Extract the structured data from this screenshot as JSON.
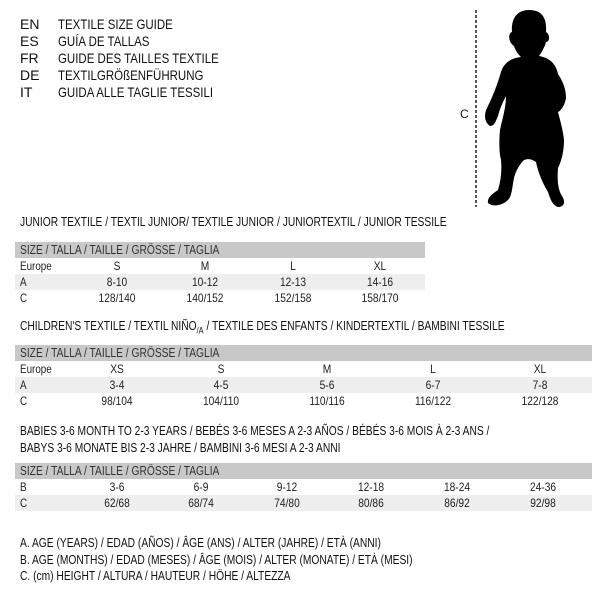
{
  "header": {
    "languages": [
      {
        "code": "EN",
        "title": "TEXTILE SIZE GUIDE"
      },
      {
        "code": "ES",
        "title": "GUÍA DE TALLAS"
      },
      {
        "code": "FR",
        "title": "GUIDE DES TAILLES TEXTILE"
      },
      {
        "code": "DE",
        "title": "TEXTILGRÖßENFÜHRUNG"
      },
      {
        "code": "IT",
        "title": "GUIDA ALLE TAGLIE TESSILI"
      }
    ]
  },
  "figure": {
    "measure_label": "C",
    "icon": "baby-silhouette-icon"
  },
  "junior": {
    "title": "JUNIOR TEXTILE / TEXTIL JUNIOR/ TEXTILE JUNIOR / JUNIORTEXTIL / JUNIOR TESSILE",
    "header": "SIZE / TALLA / TAILLE / GRÖSSE / TAGLIA",
    "rows": [
      {
        "label": "Europe",
        "values": [
          "S",
          "M",
          "L",
          "XL"
        ]
      },
      {
        "label": "A",
        "values": [
          "8-10",
          "10-12",
          "12-13",
          "14-16"
        ]
      },
      {
        "label": "C",
        "values": [
          "128/140",
          "140/152",
          "152/158",
          "158/170"
        ]
      }
    ]
  },
  "children": {
    "title_main": "CHILDREN'S TEXTILE / TEXTIL NIÑO",
    "title_sub": "/A",
    "title_rest": " / TEXTILE DES ENFANTS / KINDERTEXTIL / BAMBINI TESSILE",
    "header": "SIZE / TALLA / TAILLE / GRÖSSE / TAGLIA",
    "rows": [
      {
        "label": "Europe",
        "values": [
          "XS",
          "S",
          "M",
          "L",
          "XL"
        ]
      },
      {
        "label": "A",
        "values": [
          "3-4",
          "4-5",
          "5-6",
          "6-7",
          "7-8"
        ]
      },
      {
        "label": "C",
        "values": [
          "98/104",
          "104/110",
          "110/116",
          "116/122",
          "122/128"
        ]
      }
    ]
  },
  "babies": {
    "title_line1": "BABIES 3-6 MONTH TO 2-3 YEARS / BEBÉS 3-6 MESES A 2-3 AÑOS / BÉBÉS 3-6 MOIS À 2-3 ANS /",
    "title_line2": "BABYS 3-6 MONATE BIS 2-3 JAHRE / BAMBINI 3-6 MESI A 2-3 ANNI",
    "header": "SIZE / TALLA / TAILLE / GRÖSSE / TAGLIA",
    "rows": [
      {
        "label": "B",
        "values": [
          "3-6",
          "6-9",
          "9-12",
          "12-18",
          "18-24",
          "24-36"
        ]
      },
      {
        "label": "C",
        "values": [
          "62/68",
          "68/74",
          "74/80",
          "80/86",
          "86/92",
          "92/98"
        ]
      }
    ]
  },
  "legend": [
    "A. AGE (YEARS) / EDAD (AÑOS) / ÂGE (ANS) / ALTER (JAHRE) / ETÀ (ANNI)",
    "B. AGE (MONTHS) / EDAD (MESES) / ÂGE (MOIS) / ALTER (MONATE) / ETÀ (MESI)",
    "C. (cm) HEIGHT / ALTURA / HAUTEUR / HÖHE / ALTEZZA"
  ]
}
